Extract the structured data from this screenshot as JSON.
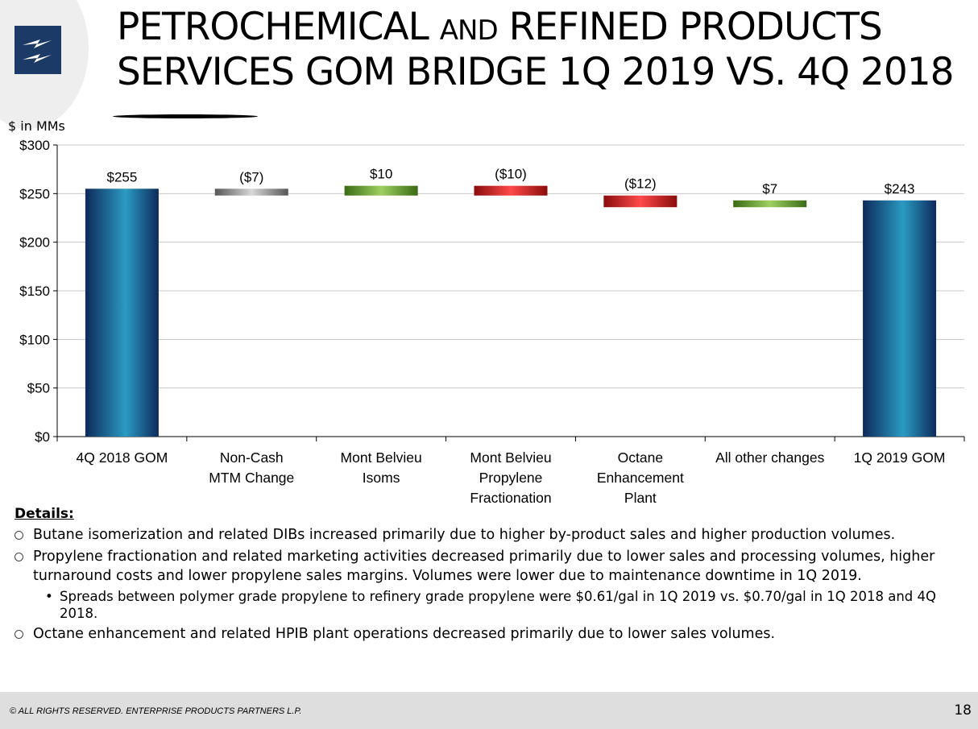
{
  "header": {
    "title_line1_part1": "PETROCHEMICAL ",
    "title_line1_small": "AND",
    "title_line1_part2": " REFINED PRODUCTS",
    "title_line2": "SERVICES GOM BRIDGE 1Q 2019 VS. 4Q 2018"
  },
  "colors": {
    "total": "#1f7fa8",
    "neutral": "#8c8c8c",
    "increase": "#5aa02c",
    "decrease": "#d62020"
  },
  "chart_data": {
    "type": "bar",
    "subtype": "waterfall",
    "ylabel": "$ in MMs",
    "ylim": [
      0,
      300
    ],
    "ytick_labels": [
      "$0",
      "$50",
      "$100",
      "$150",
      "$200",
      "$250",
      "$300"
    ],
    "categories": [
      [
        "4Q 2018 GOM"
      ],
      [
        "Non-Cash",
        "MTM Change"
      ],
      [
        "Mont Belvieu",
        "Isoms"
      ],
      [
        "Mont Belvieu",
        "Propylene",
        "Fractionation"
      ],
      [
        "Octane",
        "Enhancement",
        "Plant"
      ],
      [
        "All other changes"
      ],
      [
        "1Q 2019 GOM"
      ]
    ],
    "values": [
      255,
      -7,
      10,
      -10,
      -12,
      7,
      243
    ],
    "kinds": [
      "total",
      "neutral",
      "increase",
      "decrease",
      "decrease",
      "increase",
      "total"
    ],
    "data_labels": [
      "$255",
      "($7)",
      "$10",
      "($10)",
      "($12)",
      "$7",
      "$243"
    ],
    "grid": true
  },
  "details": {
    "heading": "Details:",
    "bullets": [
      "Butane isomerization and related DIBs increased primarily due to higher by-product sales and higher production volumes.",
      "Propylene fractionation and related marketing activities decreased primarily due to lower sales and processing volumes, higher turnaround costs and lower propylene sales margins. Volumes were lower due to maintenance downtime in 1Q 2019."
    ],
    "sub_bullet_marker": "•",
    "sub_bullet": "Spreads between polymer grade propylene to refinery grade propylene were $0.61/gal in 1Q 2019 vs. $0.70/gal in 1Q 2018 and 4Q 2018.",
    "last_bullet": "Octane enhancement and related HPIB plant operations decreased primarily due to lower sales volumes."
  },
  "footer": {
    "copyright": "© ALL RIGHTS RESERVED. ENTERPRISE PRODUCTS PARTNERS L.P.",
    "page_number": "18"
  }
}
